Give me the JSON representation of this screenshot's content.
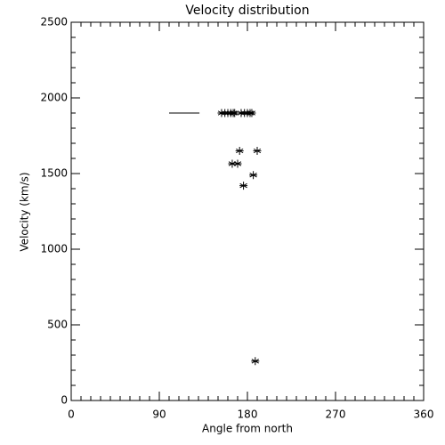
{
  "chart_data": {
    "type": "scatter",
    "title": "Velocity distribution",
    "x_label": "Angle from north",
    "y_label": "Velocity (km/s)",
    "xlim": [
      0,
      360
    ],
    "ylim": [
      0,
      2500
    ],
    "xticks": [
      0,
      90,
      180,
      270,
      360
    ],
    "yticks": [
      0,
      500,
      1000,
      1500,
      2000,
      2500
    ],
    "x_minor_tick_step": 10,
    "y_minor_tick_step": 100,
    "color": "#000000",
    "series": [
      {
        "marker": "asterisk",
        "x": [
          153.6,
          157,
          160,
          163,
          165.5,
          167,
          173.6,
          177,
          180,
          182.7,
          184.5,
          172,
          190,
          164.5,
          170,
          186,
          176,
          188
        ],
        "values": [
          1900,
          1900,
          1900,
          1900,
          1900,
          1900,
          1900,
          1900,
          1900,
          1900,
          1900,
          1650,
          1650,
          1565,
          1565,
          1490,
          1420,
          260
        ]
      },
      {
        "marker": "line",
        "x": [
          100,
          131
        ],
        "values": [
          1900,
          1900
        ]
      }
    ]
  }
}
